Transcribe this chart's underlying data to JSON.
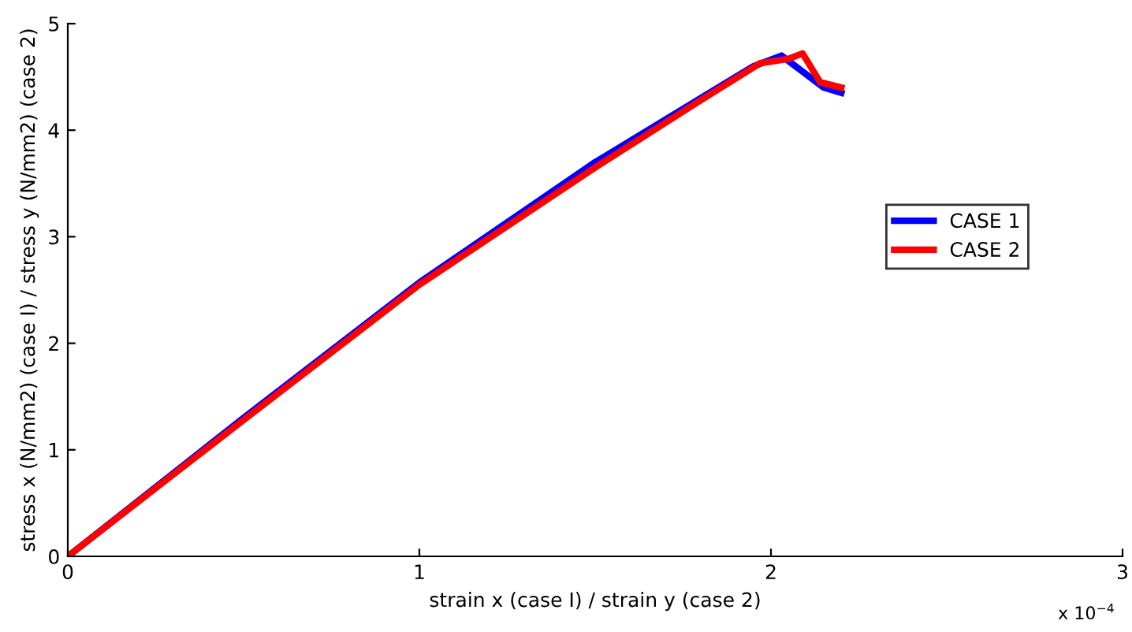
{
  "chart_data": {
    "type": "line",
    "xlabel": "strain x (case I) / strain y (case 2)",
    "ylabel": "stress x (N/mm2) (case I) / stress y (N/mm2) (case 2)",
    "annotations": [
      "x 10$^{−4}$"
    ],
    "series": [
      {
        "name": "CASE 1",
        "color": "#0000ff",
        "x": [
          0,
          0.5,
          1,
          1.5,
          1.8,
          1.95,
          2.03,
          2.15,
          2.2
        ],
        "values": [
          0,
          1.3,
          2.57,
          3.7,
          4.3,
          4.6,
          4.7,
          4.4,
          4.35
        ]
      },
      {
        "name": "CASE 2",
        "color": "#ff0000",
        "x": [
          0,
          0.5,
          1,
          1.5,
          1.8,
          1.97,
          2.05,
          2.09,
          2.14,
          2.2
        ],
        "values": [
          0,
          1.28,
          2.55,
          3.65,
          4.28,
          4.63,
          4.67,
          4.72,
          4.45,
          4.4
        ]
      }
    ],
    "xlim": [
      0,
      3
    ],
    "xticks": [
      0,
      1,
      2,
      3
    ],
    "ylim": [
      0,
      5
    ],
    "yticks": [
      0,
      1,
      2,
      3,
      4,
      5
    ],
    "grid": false,
    "legend": "right",
    "line_style": "solid",
    "marker": "none"
  }
}
